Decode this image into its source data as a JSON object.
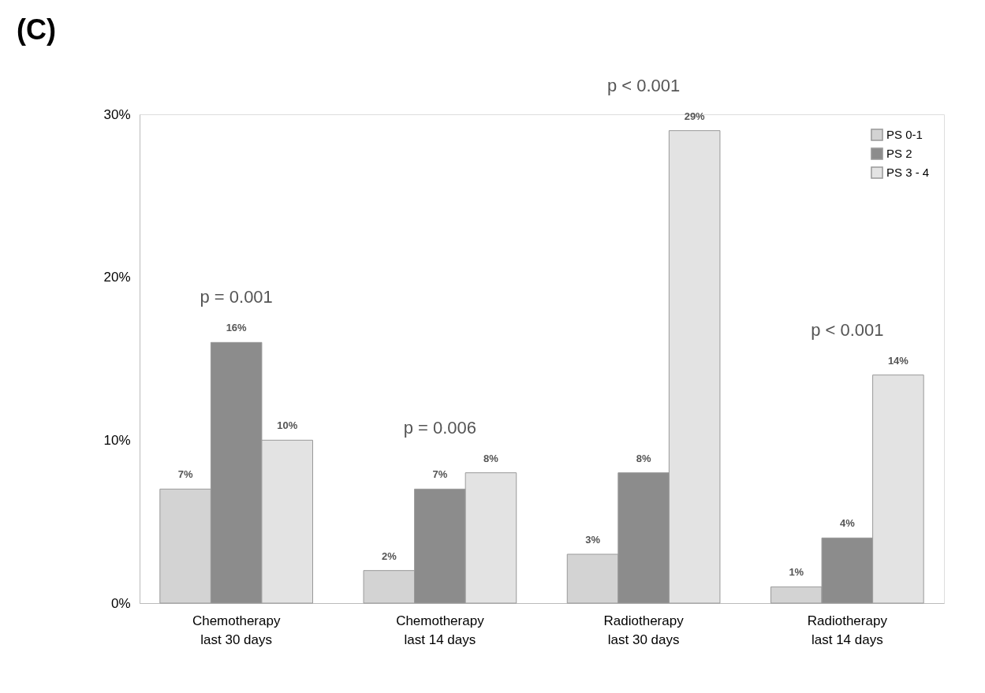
{
  "chart_data": {
    "type": "bar",
    "title": "(C)",
    "categories": [
      "Chemotherapy last 30 days",
      "Chemotherapy last 14 days",
      "Radiotherapy last 30 days",
      "Radiotherapy last 14 days"
    ],
    "series": [
      {
        "name": "PS 0-1",
        "color": "#d3d3d3",
        "values": [
          7,
          2,
          3,
          1
        ],
        "value_labels": [
          "7%",
          "2%",
          "3%",
          "1%"
        ]
      },
      {
        "name": "PS 2",
        "color": "#8c8c8c",
        "values": [
          16,
          7,
          8,
          4
        ],
        "value_labels": [
          "16%",
          "7%",
          "8%",
          "4%"
        ]
      },
      {
        "name": "PS 3 - 4",
        "color": "#e3e3e3",
        "values": [
          10,
          8,
          29,
          14
        ],
        "value_labels": [
          "10%",
          "8%",
          "29%",
          "14%"
        ]
      }
    ],
    "ylim": [
      0,
      30
    ],
    "yticks": [
      {
        "value": 0,
        "label": "0%"
      },
      {
        "value": 10,
        "label": "10%"
      },
      {
        "value": 20,
        "label": "20%"
      },
      {
        "value": 30,
        "label": "30%"
      }
    ],
    "annotations": [
      "p = 0.001",
      "p = 0.006",
      "p < 0.001",
      "p < 0.001"
    ],
    "grid": false,
    "legend": "top right"
  }
}
